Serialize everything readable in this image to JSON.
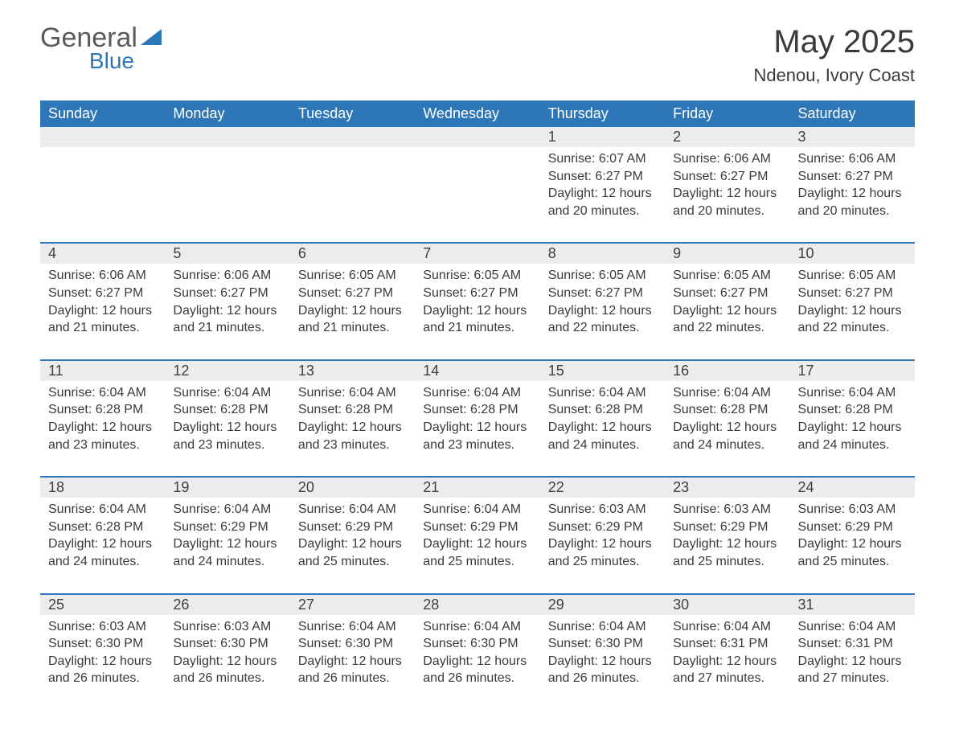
{
  "brand": {
    "word1": "General",
    "word2": "Blue"
  },
  "title": "May 2025",
  "location": "Ndenou, Ivory Coast",
  "colors": {
    "header_bg": "#2d76b8",
    "header_text": "#ffffff",
    "daynum_bg": "#ececec",
    "body_text": "#3a3a3a",
    "row_divider": "#2d76b8",
    "page_bg": "#ffffff",
    "logo_blue": "#2d76b8",
    "logo_gray": "#5a5a5a"
  },
  "typography": {
    "title_fontsize": 40,
    "location_fontsize": 22,
    "weekday_fontsize": 18,
    "daynum_fontsize": 18,
    "cell_fontsize": 16,
    "font_family": "Arial"
  },
  "layout": {
    "columns": 7,
    "start_weekday": "Sunday",
    "blank_cells_before": 4
  },
  "weekdays": [
    "Sunday",
    "Monday",
    "Tuesday",
    "Wednesday",
    "Thursday",
    "Friday",
    "Saturday"
  ],
  "labels": {
    "sunrise": "Sunrise:",
    "sunset": "Sunset:",
    "daylight": "Daylight:"
  },
  "days": [
    {
      "n": "1",
      "sunrise": "6:07 AM",
      "sunset": "6:27 PM",
      "daylight": "12 hours and 20 minutes."
    },
    {
      "n": "2",
      "sunrise": "6:06 AM",
      "sunset": "6:27 PM",
      "daylight": "12 hours and 20 minutes."
    },
    {
      "n": "3",
      "sunrise": "6:06 AM",
      "sunset": "6:27 PM",
      "daylight": "12 hours and 20 minutes."
    },
    {
      "n": "4",
      "sunrise": "6:06 AM",
      "sunset": "6:27 PM",
      "daylight": "12 hours and 21 minutes."
    },
    {
      "n": "5",
      "sunrise": "6:06 AM",
      "sunset": "6:27 PM",
      "daylight": "12 hours and 21 minutes."
    },
    {
      "n": "6",
      "sunrise": "6:05 AM",
      "sunset": "6:27 PM",
      "daylight": "12 hours and 21 minutes."
    },
    {
      "n": "7",
      "sunrise": "6:05 AM",
      "sunset": "6:27 PM",
      "daylight": "12 hours and 21 minutes."
    },
    {
      "n": "8",
      "sunrise": "6:05 AM",
      "sunset": "6:27 PM",
      "daylight": "12 hours and 22 minutes."
    },
    {
      "n": "9",
      "sunrise": "6:05 AM",
      "sunset": "6:27 PM",
      "daylight": "12 hours and 22 minutes."
    },
    {
      "n": "10",
      "sunrise": "6:05 AM",
      "sunset": "6:27 PM",
      "daylight": "12 hours and 22 minutes."
    },
    {
      "n": "11",
      "sunrise": "6:04 AM",
      "sunset": "6:28 PM",
      "daylight": "12 hours and 23 minutes."
    },
    {
      "n": "12",
      "sunrise": "6:04 AM",
      "sunset": "6:28 PM",
      "daylight": "12 hours and 23 minutes."
    },
    {
      "n": "13",
      "sunrise": "6:04 AM",
      "sunset": "6:28 PM",
      "daylight": "12 hours and 23 minutes."
    },
    {
      "n": "14",
      "sunrise": "6:04 AM",
      "sunset": "6:28 PM",
      "daylight": "12 hours and 23 minutes."
    },
    {
      "n": "15",
      "sunrise": "6:04 AM",
      "sunset": "6:28 PM",
      "daylight": "12 hours and 24 minutes."
    },
    {
      "n": "16",
      "sunrise": "6:04 AM",
      "sunset": "6:28 PM",
      "daylight": "12 hours and 24 minutes."
    },
    {
      "n": "17",
      "sunrise": "6:04 AM",
      "sunset": "6:28 PM",
      "daylight": "12 hours and 24 minutes."
    },
    {
      "n": "18",
      "sunrise": "6:04 AM",
      "sunset": "6:28 PM",
      "daylight": "12 hours and 24 minutes."
    },
    {
      "n": "19",
      "sunrise": "6:04 AM",
      "sunset": "6:29 PM",
      "daylight": "12 hours and 24 minutes."
    },
    {
      "n": "20",
      "sunrise": "6:04 AM",
      "sunset": "6:29 PM",
      "daylight": "12 hours and 25 minutes."
    },
    {
      "n": "21",
      "sunrise": "6:04 AM",
      "sunset": "6:29 PM",
      "daylight": "12 hours and 25 minutes."
    },
    {
      "n": "22",
      "sunrise": "6:03 AM",
      "sunset": "6:29 PM",
      "daylight": "12 hours and 25 minutes."
    },
    {
      "n": "23",
      "sunrise": "6:03 AM",
      "sunset": "6:29 PM",
      "daylight": "12 hours and 25 minutes."
    },
    {
      "n": "24",
      "sunrise": "6:03 AM",
      "sunset": "6:29 PM",
      "daylight": "12 hours and 25 minutes."
    },
    {
      "n": "25",
      "sunrise": "6:03 AM",
      "sunset": "6:30 PM",
      "daylight": "12 hours and 26 minutes."
    },
    {
      "n": "26",
      "sunrise": "6:03 AM",
      "sunset": "6:30 PM",
      "daylight": "12 hours and 26 minutes."
    },
    {
      "n": "27",
      "sunrise": "6:04 AM",
      "sunset": "6:30 PM",
      "daylight": "12 hours and 26 minutes."
    },
    {
      "n": "28",
      "sunrise": "6:04 AM",
      "sunset": "6:30 PM",
      "daylight": "12 hours and 26 minutes."
    },
    {
      "n": "29",
      "sunrise": "6:04 AM",
      "sunset": "6:30 PM",
      "daylight": "12 hours and 26 minutes."
    },
    {
      "n": "30",
      "sunrise": "6:04 AM",
      "sunset": "6:31 PM",
      "daylight": "12 hours and 27 minutes."
    },
    {
      "n": "31",
      "sunrise": "6:04 AM",
      "sunset": "6:31 PM",
      "daylight": "12 hours and 27 minutes."
    }
  ]
}
